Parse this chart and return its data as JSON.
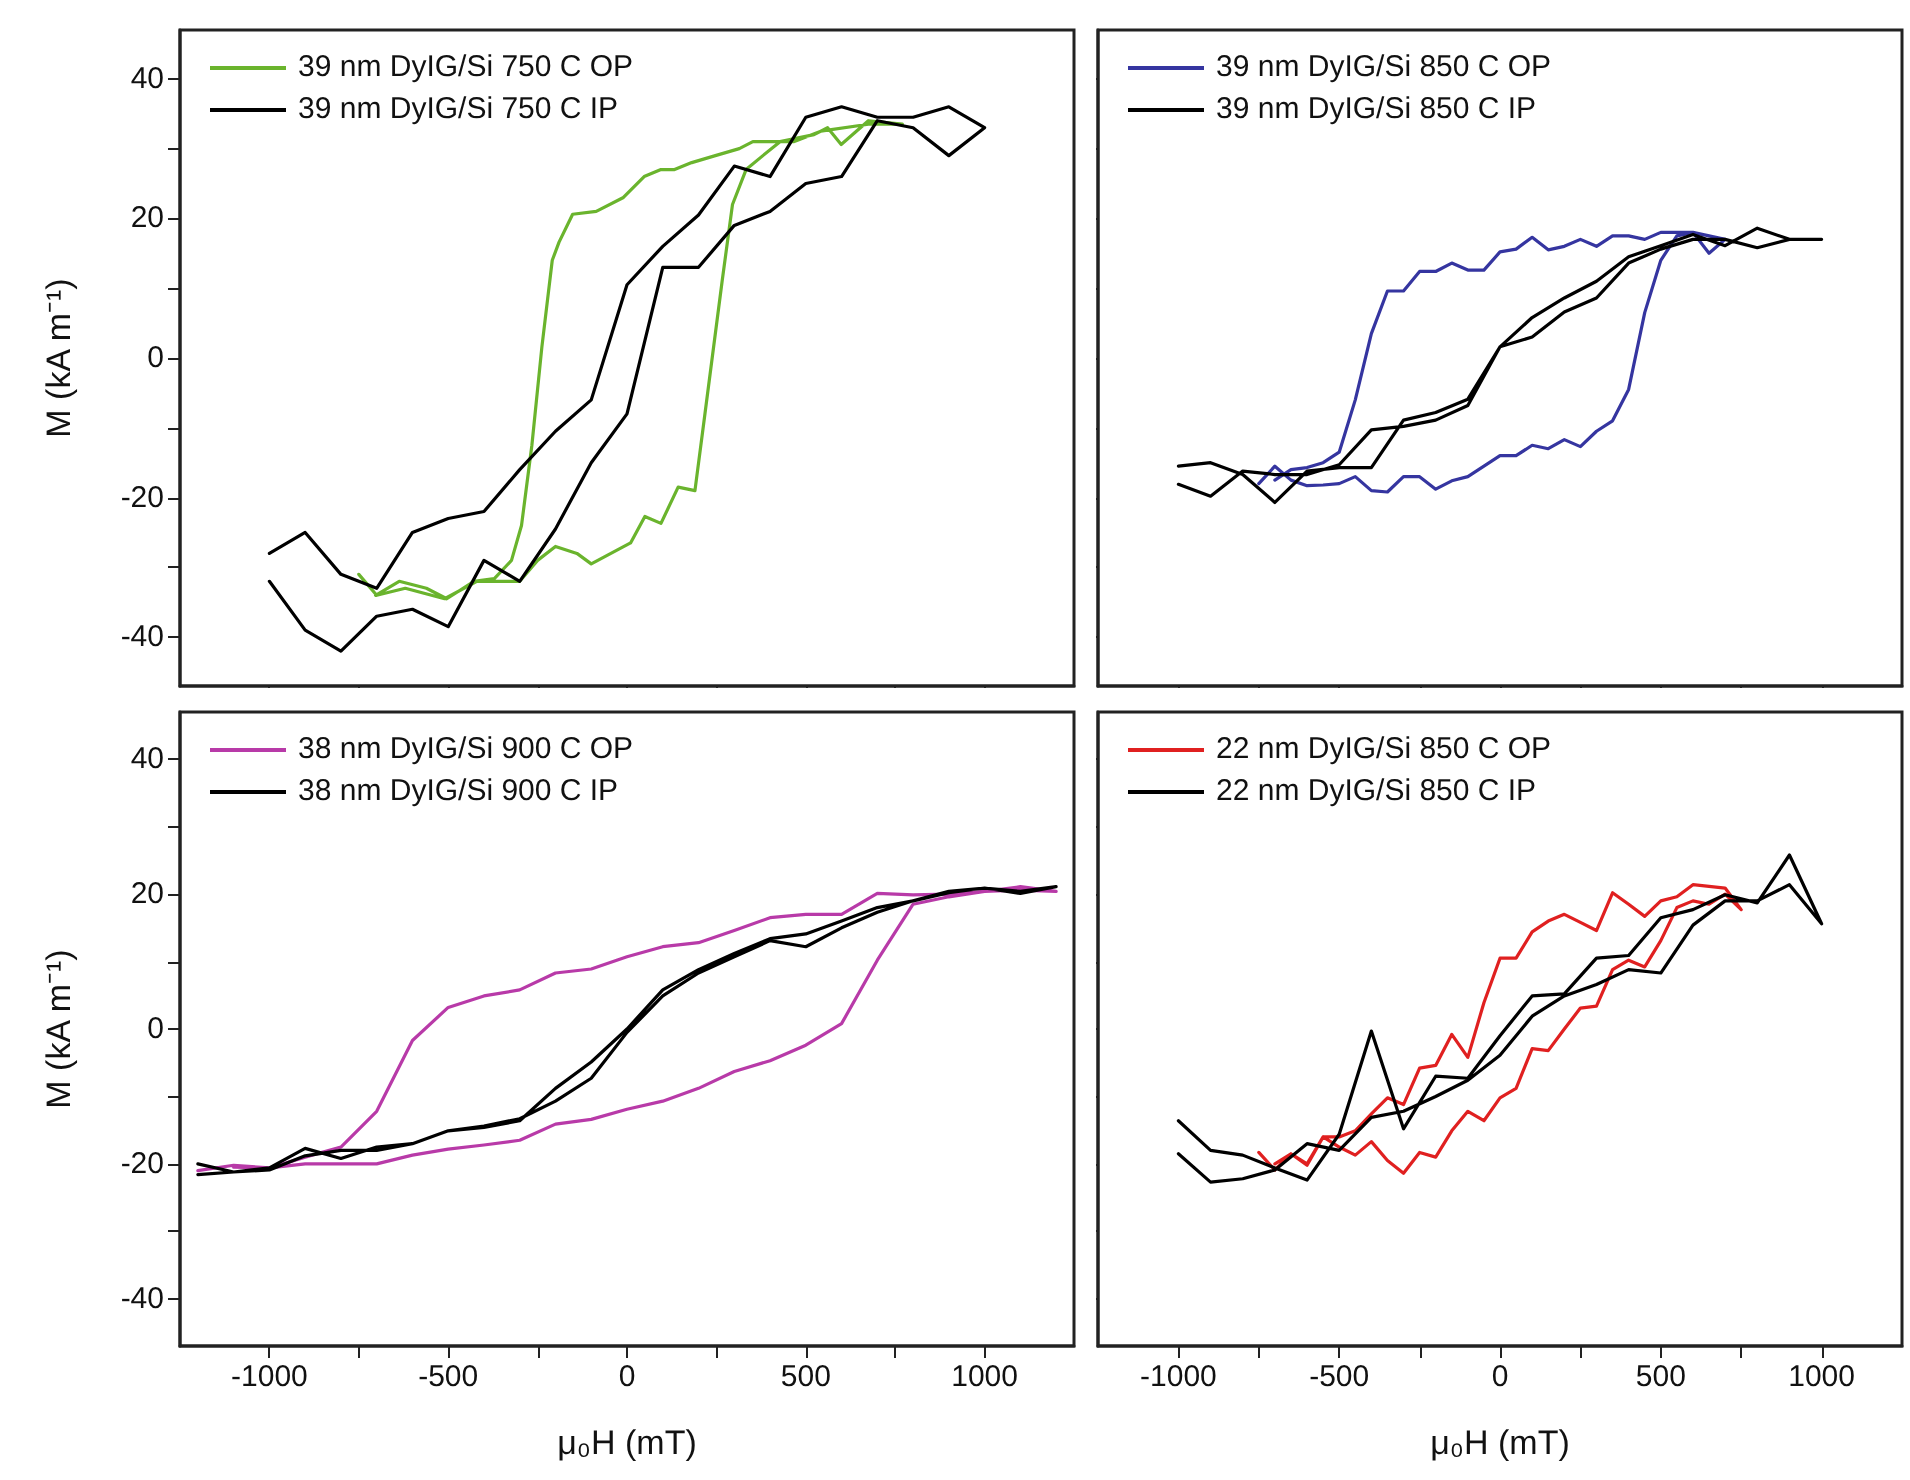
{
  "chart_data": [
    {
      "type": "line",
      "ylabel": "M (kA m⁻¹)",
      "xlim": [
        -1250,
        1250
      ],
      "ylim": [
        -47,
        47
      ],
      "xticks": [
        -1000,
        {
          "value": -750,
          "label": null
        },
        -500,
        {
          "value": -250,
          "label": null
        },
        0,
        {
          "value": 250,
          "label": null
        },
        500,
        {
          "value": 750,
          "label": null
        },
        1000
      ],
      "yticks": [
        -40,
        {
          "value": -30,
          "label": null
        },
        -20,
        {
          "value": -10,
          "label": null
        },
        0,
        {
          "value": 10,
          "label": null
        },
        20,
        {
          "value": 30,
          "label": null
        },
        40
      ],
      "tick_labels": "y",
      "legend": "top left",
      "grid": false,
      "line_style": "solid",
      "series": [
        {
          "name": "39 nm DyIG/Si 750 C OP",
          "color": "#6ab42d",
          "x": [
            -750,
            -700,
            -620,
            -510,
            -420,
            -300,
            -250,
            -200,
            -140,
            -100,
            10,
            50,
            95,
            143,
            190,
            218,
            266,
            295,
            333,
            380,
            428,
            523,
            561,
            599,
            675,
            770,
            675,
            542,
            466,
            352,
            314,
            247,
            181,
            133,
            95,
            48,
            -10,
            -86,
            -152,
            -190,
            -209,
            -238,
            -266,
            -295,
            -323,
            -371,
            -428,
            -504,
            -561,
            -637,
            -703
          ],
          "values": [
            -31,
            -34,
            -33,
            -34.5,
            -32,
            -32,
            -29,
            -27,
            -28,
            -29.5,
            -26.5,
            -22.7,
            -23.7,
            -18.5,
            -19,
            -8,
            11,
            22,
            27,
            29,
            31,
            32,
            33,
            30.6,
            34,
            33.5,
            33.5,
            32.5,
            31,
            31,
            30,
            29,
            28,
            27,
            27,
            26,
            23,
            21,
            20.6,
            16.6,
            14,
            1.6,
            -12.5,
            -24,
            -29,
            -31.6,
            -32,
            -34.5,
            -33,
            -32,
            -34
          ]
        },
        {
          "name": "39 nm DyIG/Si 750 C IP",
          "color": "#000000",
          "x": [
            -1000,
            -900,
            -800,
            -700,
            -600,
            -500,
            -400,
            -300,
            -200,
            -100,
            0,
            100,
            200,
            300,
            400,
            500,
            600,
            700,
            800,
            900,
            1000,
            900,
            800,
            700,
            600,
            500,
            400,
            300,
            200,
            100,
            0,
            -100,
            -200,
            -300,
            -400,
            -500,
            -600,
            -700,
            -800,
            -900,
            -1000
          ],
          "values": [
            -28,
            -25,
            -31,
            -33,
            -25,
            -23,
            -22,
            -16,
            -10.5,
            -6,
            10.5,
            16,
            20.5,
            27.5,
            26,
            34.5,
            36,
            34.5,
            34.5,
            36,
            33,
            29,
            33,
            34,
            26,
            25,
            21,
            19,
            13,
            13,
            -8,
            -15,
            -24.5,
            -32,
            -29,
            -38.5,
            -36,
            -37,
            -42,
            -39,
            -32
          ]
        }
      ]
    },
    {
      "type": "line",
      "xlim": [
        -1250,
        1250
      ],
      "ylim": [
        -47,
        47
      ],
      "xticks": [
        -1000,
        {
          "value": -750,
          "label": null
        },
        -500,
        {
          "value": -250,
          "label": null
        },
        0,
        {
          "value": 250,
          "label": null
        },
        500,
        {
          "value": 750,
          "label": null
        },
        1000
      ],
      "yticks": [
        -40,
        {
          "value": -30,
          "label": null
        },
        -20,
        {
          "value": -10,
          "label": null
        },
        0,
        {
          "value": 10,
          "label": null
        },
        20,
        {
          "value": 30,
          "label": null
        },
        40
      ],
      "tick_labels": false,
      "legend": "top left",
      "grid": false,
      "line_style": "solid",
      "series": [
        {
          "name": "39 nm DyIG/Si 850 C OP",
          "color": "#3535a0",
          "x": [
            -750,
            -700,
            -650,
            -600,
            -550,
            -500,
            -450,
            -400,
            -350,
            -300,
            -250,
            -200,
            -150,
            -100,
            -50,
            0,
            50,
            100,
            150,
            200,
            250,
            300,
            350,
            400,
            450,
            500,
            550,
            600,
            650,
            700,
            650,
            600,
            550,
            500,
            450,
            400,
            350,
            300,
            250,
            200,
            150,
            100,
            50,
            0,
            -50,
            -100,
            -150,
            -200,
            -250,
            -300,
            -350,
            -400,
            -450,
            -500,
            -550,
            -600,
            -650,
            -700
          ],
          "values": [
            -18,
            -15.5,
            -17.5,
            -18.3,
            -18.2,
            -18,
            -17,
            -19,
            -19.2,
            -17,
            -17,
            -18.8,
            -17.6,
            -17,
            -15.5,
            -14,
            -14,
            -12.5,
            -13,
            -11.7,
            -12.7,
            -10.5,
            -9,
            -4.5,
            6.5,
            14,
            17.5,
            18,
            15,
            17,
            17.5,
            18,
            18,
            18,
            17,
            17.5,
            17.5,
            16,
            17,
            16,
            15.5,
            17.3,
            15.6,
            15.2,
            12.6,
            12.6,
            13.6,
            12.4,
            12.4,
            9.6,
            9.6,
            3.5,
            -6,
            -13.5,
            -15,
            -15.7,
            -16,
            -17.5
          ]
        },
        {
          "name": "39 nm DyIG/Si 850 C IP",
          "color": "#000000",
          "x": [
            -1000,
            -900,
            -800,
            -700,
            -600,
            -500,
            -400,
            -300,
            -200,
            -100,
            0,
            100,
            200,
            300,
            400,
            500,
            600,
            700,
            800,
            900,
            1000,
            900,
            800,
            700,
            600,
            500,
            400,
            300,
            200,
            100,
            0,
            -100,
            -200,
            -300,
            -400,
            -500,
            -600,
            -700,
            -800,
            -900,
            -1000
          ],
          "values": [
            -15.5,
            -15,
            -16.7,
            -20.7,
            -16.2,
            -15.7,
            -15.7,
            -8.9,
            -7.8,
            -5.9,
            1.6,
            5.8,
            8.6,
            11,
            14.5,
            16.1,
            17.7,
            16.1,
            18.6,
            17,
            17,
            17,
            15.8,
            17,
            17,
            15.6,
            13.6,
            8.6,
            6.6,
            3,
            1.6,
            -6.8,
            -8.9,
            -9.8,
            -10.3,
            -15.3,
            -16.7,
            -16.7,
            -16.2,
            -19.8,
            -18.1
          ]
        }
      ]
    },
    {
      "type": "line",
      "xlabel": "μ₀H (mT)",
      "ylabel": "M (kA m⁻¹)",
      "xlim": [
        -1250,
        1250
      ],
      "ylim": [
        -47,
        47
      ],
      "xticks": [
        -1000,
        {
          "value": -750,
          "label": null
        },
        -500,
        {
          "value": -250,
          "label": null
        },
        0,
        {
          "value": 250,
          "label": null
        },
        500,
        {
          "value": 750,
          "label": null
        },
        1000
      ],
      "yticks": [
        -40,
        {
          "value": -30,
          "label": null
        },
        -20,
        {
          "value": -10,
          "label": null
        },
        0,
        {
          "value": 10,
          "label": null
        },
        20,
        {
          "value": 30,
          "label": null
        },
        40
      ],
      "legend": "top left",
      "grid": false,
      "line_style": "solid",
      "series": [
        {
          "name": "38 nm DyIG/Si 900 C OP",
          "color": "#b83aa8",
          "x": [
            -1200,
            -1100,
            -1000,
            -900,
            -800,
            -700,
            -600,
            -500,
            -400,
            -300,
            -200,
            -100,
            0,
            100,
            200,
            300,
            400,
            500,
            600,
            700,
            800,
            900,
            1000,
            1100,
            1200,
            1100,
            1000,
            900,
            800,
            700,
            600,
            500,
            400,
            300,
            200,
            100,
            0,
            -100,
            -200,
            -300,
            -400,
            -500,
            -600,
            -700,
            -800,
            -900,
            -1000,
            -1100
          ],
          "values": [
            -21,
            -20.2,
            -20.6,
            -20,
            -20,
            -20,
            -18.7,
            -17.8,
            -17.2,
            -16.5,
            -14.1,
            -13.4,
            -11.9,
            -10.7,
            -8.8,
            -6.3,
            -4.7,
            -2.4,
            0.8,
            10.2,
            18.5,
            19.6,
            20.4,
            20.6,
            20.4,
            21.1,
            20.4,
            20,
            19.9,
            20.1,
            17,
            17,
            16.5,
            14.6,
            12.8,
            12.2,
            10.7,
            8.9,
            8.3,
            5.8,
            4.9,
            3.2,
            -1.7,
            -12.2,
            -17.5,
            -19,
            -20.6,
            -20.5
          ]
        },
        {
          "name": "38 nm DyIG/Si 900 C IP",
          "color": "#000000",
          "x": [
            -1200,
            -1100,
            -1000,
            -900,
            -800,
            -700,
            -600,
            -500,
            -400,
            -300,
            -200,
            -100,
            0,
            100,
            200,
            300,
            400,
            500,
            600,
            700,
            800,
            900,
            1000,
            1100,
            1200,
            1100,
            1000,
            900,
            800,
            700,
            600,
            500,
            400,
            300,
            200,
            100,
            0,
            -100,
            -200,
            -300,
            -400,
            -500,
            -600,
            -700,
            -800,
            -900,
            -1000,
            -1100,
            -1200
          ],
          "values": [
            -20,
            -21.2,
            -20.6,
            -17.7,
            -19.2,
            -17.5,
            -17,
            -15.1,
            -14.6,
            -13.6,
            -8.8,
            -4.9,
            0,
            5.8,
            8.8,
            11.2,
            13.4,
            14.1,
            16,
            18,
            19,
            20.4,
            20.9,
            20.1,
            21.1,
            20.4,
            20.9,
            20.2,
            19,
            17.3,
            15,
            12.2,
            13.1,
            10.7,
            8.3,
            4.9,
            -0.5,
            -7.3,
            -10.7,
            -13.3,
            -14.4,
            -15.1,
            -17,
            -18,
            -18,
            -18.8,
            -20.9,
            -21.2,
            -21.6
          ]
        }
      ]
    },
    {
      "type": "line",
      "xlabel": "μ₀H (mT)",
      "xlim": [
        -1250,
        1250
      ],
      "ylim": [
        -47,
        47
      ],
      "xticks": [
        -1000,
        {
          "value": -750,
          "label": null
        },
        -500,
        {
          "value": -250,
          "label": null
        },
        0,
        {
          "value": 250,
          "label": null
        },
        500,
        {
          "value": 750,
          "label": null
        },
        1000
      ],
      "yticks": [
        -40,
        {
          "value": -30,
          "label": null
        },
        -20,
        {
          "value": -10,
          "label": null
        },
        0,
        {
          "value": 10,
          "label": null
        },
        20,
        {
          "value": 30,
          "label": null
        },
        40
      ],
      "tick_labels": "x",
      "legend": "top left",
      "grid": false,
      "line_style": "solid",
      "series": [
        {
          "name": "22 nm DyIG/Si 850 C OP",
          "color": "#e02020",
          "x": [
            -750,
            -700,
            -650,
            -600,
            -550,
            -500,
            -450,
            -400,
            -350,
            -300,
            -250,
            -200,
            -150,
            -100,
            -50,
            0,
            50,
            100,
            150,
            200,
            250,
            300,
            350,
            400,
            450,
            500,
            550,
            600,
            650,
            700,
            750,
            700,
            600,
            550,
            500,
            450,
            400,
            350,
            300,
            250,
            200,
            150,
            100,
            50,
            0,
            -50,
            -100,
            -150,
            -200,
            -250,
            -300,
            -350,
            -400,
            -450,
            -500,
            -550,
            -600,
            -650,
            -700
          ],
          "values": [
            -18.3,
            -20.9,
            -18.5,
            -20.2,
            -16,
            -17.5,
            -18.7,
            -16.7,
            -19.5,
            -21.4,
            -18.3,
            -19,
            -15.1,
            -12.2,
            -13.6,
            -10.2,
            -8.8,
            -2.9,
            -3.2,
            0,
            3.1,
            3.4,
            8.8,
            10.2,
            9.2,
            13.1,
            18,
            19,
            18.5,
            20,
            17.7,
            20.9,
            21.4,
            19.6,
            19,
            16.7,
            18.5,
            20.2,
            14.6,
            15.8,
            17,
            16,
            14.4,
            10.5,
            10.5,
            3.9,
            -4.2,
            -0.8,
            -5.4,
            -5.8,
            -11.2,
            -10.2,
            -12.6,
            -15.1,
            -16,
            -16,
            -20,
            -18.5,
            -20
          ]
        },
        {
          "name": "22 nm DyIG/Si 850 C IP",
          "color": "#000000",
          "x": [
            -1000,
            -900,
            -800,
            -700,
            -600,
            -500,
            -400,
            -300,
            -200,
            -100,
            0,
            100,
            200,
            300,
            400,
            500,
            600,
            700,
            800,
            900,
            1000,
            900,
            800,
            700,
            600,
            500,
            400,
            300,
            200,
            100,
            0,
            -100,
            -200,
            -300,
            -400,
            -500,
            -600,
            -700,
            -800,
            -900,
            -1000
          ],
          "values": [
            -13.6,
            -18,
            -18.7,
            -20.6,
            -22.4,
            -15.6,
            -0.3,
            -14.8,
            -7,
            -7.3,
            -1,
            4.9,
            5.2,
            10.5,
            10.9,
            16.5,
            17.7,
            19.9,
            18.7,
            25.8,
            15.6,
            21.4,
            19,
            19,
            15.4,
            8.3,
            8.8,
            6.6,
            4.9,
            1.9,
            -3.9,
            -7.6,
            -10,
            -12.2,
            -13.1,
            -18,
            -17,
            -20.9,
            -22.2,
            -22.7,
            -18.5
          ]
        }
      ]
    }
  ]
}
